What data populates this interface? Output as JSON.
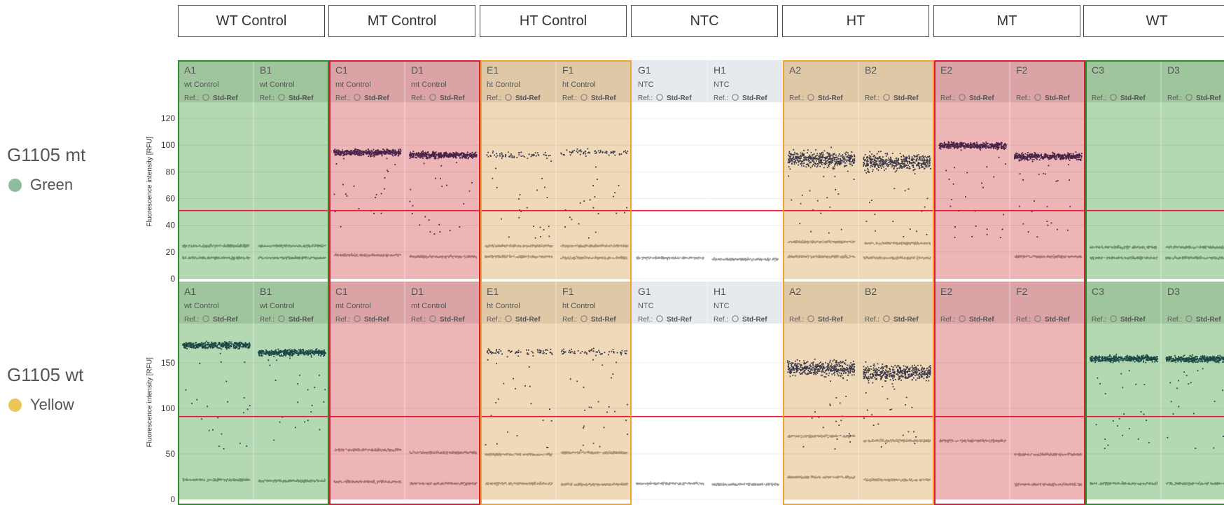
{
  "groups": [
    {
      "label": "WT Control"
    },
    {
      "label": "MT Control"
    },
    {
      "label": "HT Control"
    },
    {
      "label": "NTC"
    },
    {
      "label": "HT"
    },
    {
      "label": "MT"
    },
    {
      "label": "WT"
    }
  ],
  "assays": [
    {
      "name": "G1105 mt",
      "dye": "Green",
      "dye_color": "#8fbc9f"
    },
    {
      "name": "G1105 wt",
      "dye": "Yellow",
      "dye_color": "#eac756"
    }
  ],
  "colors": {
    "wt": "#b4d8b2",
    "mt": "#eeb5b7",
    "ht": "#efd9b8",
    "ntc": "#ffffff",
    "threshold": "#e0203a",
    "wt_border": "#2a8c2a",
    "mt_border": "#d81b3a",
    "ht_border": "#f0a232"
  },
  "chart_data": [
    {
      "type": "scatter",
      "title": "",
      "ylabel": "Fluorescence intensity [RFU]",
      "ylim": [
        0,
        130
      ],
      "yticks": [
        0,
        20,
        40,
        60,
        80,
        100,
        120
      ],
      "threshold": 51,
      "wells": [
        {
          "well": "A1",
          "sample": "wt Control",
          "ref": "Ref.:",
          "std": "Std-Ref",
          "type": "wt",
          "neg": [
            25,
            16
          ],
          "pos": null
        },
        {
          "well": "B1",
          "sample": "wt Control",
          "ref": "Ref.:",
          "std": "Std-Ref",
          "type": "wt",
          "neg": [
            25,
            16
          ],
          "pos": null
        },
        {
          "well": "C1",
          "sample": "mt Control",
          "ref": "Ref.:",
          "std": "Std-Ref",
          "type": "mt",
          "neg": [
            18
          ],
          "pos": 95
        },
        {
          "well": "D1",
          "sample": "mt Control",
          "ref": "Ref.:",
          "std": "Std-Ref",
          "type": "mt",
          "neg": [
            17
          ],
          "pos": 93
        },
        {
          "well": "E1",
          "sample": "ht Control",
          "ref": "Ref.:",
          "std": "Std-Ref",
          "type": "ht",
          "neg": [
            25,
            17
          ],
          "pos": 93
        },
        {
          "well": "F1",
          "sample": "ht Control",
          "ref": "Ref.:",
          "std": "Std-Ref",
          "type": "ht",
          "neg": [
            25,
            16
          ],
          "pos": 95
        },
        {
          "well": "G1",
          "sample": "NTC",
          "ref": "Ref.:",
          "std": "Std-Ref",
          "type": "ntc",
          "neg": [
            16
          ],
          "pos": null
        },
        {
          "well": "H1",
          "sample": "NTC",
          "ref": "Ref.:",
          "std": "Std-Ref",
          "type": "ntc",
          "neg": [
            15
          ],
          "pos": null
        },
        {
          "well": "A2",
          "sample": "",
          "ref": "Ref.:",
          "std": "Std-Ref",
          "type": "ht",
          "neg": [
            28,
            17
          ],
          "pos": 90
        },
        {
          "well": "B2",
          "sample": "",
          "ref": "Ref.:",
          "std": "Std-Ref",
          "type": "ht",
          "neg": [
            27,
            16
          ],
          "pos": 88
        },
        {
          "well": "E2",
          "sample": "",
          "ref": "Ref.:",
          "std": "Std-Ref",
          "type": "mt",
          "neg": [],
          "pos": 100
        },
        {
          "well": "F2",
          "sample": "",
          "ref": "Ref.:",
          "std": "Std-Ref",
          "type": "mt",
          "neg": [
            17
          ],
          "pos": 92
        },
        {
          "well": "C3",
          "sample": "",
          "ref": "Ref.:",
          "std": "Std-Ref",
          "type": "wt",
          "neg": [
            24,
            16
          ],
          "pos": null
        },
        {
          "well": "D3",
          "sample": "",
          "ref": "Ref.:",
          "std": "Std-Ref",
          "type": "wt",
          "neg": [
            24,
            16
          ],
          "pos": null
        }
      ]
    },
    {
      "type": "scatter",
      "title": "",
      "ylabel": "Fluorescence intensity [RFU]",
      "ylim": [
        0,
        190
      ],
      "yticks": [
        0,
        50,
        100,
        150
      ],
      "threshold": 91,
      "wells": [
        {
          "well": "A1",
          "sample": "wt Control",
          "ref": "Ref.:",
          "std": "Std-Ref",
          "type": "wt",
          "neg": [
            22
          ],
          "pos": 170
        },
        {
          "well": "B1",
          "sample": "wt Control",
          "ref": "Ref.:",
          "std": "Std-Ref",
          "type": "wt",
          "neg": [
            21
          ],
          "pos": 162
        },
        {
          "well": "C1",
          "sample": "mt Control",
          "ref": "Ref.:",
          "std": "Std-Ref",
          "type": "mt",
          "neg": [
            55,
            20
          ],
          "pos": null
        },
        {
          "well": "D1",
          "sample": "mt Control",
          "ref": "Ref.:",
          "std": "Std-Ref",
          "type": "mt",
          "neg": [
            52,
            18
          ],
          "pos": null
        },
        {
          "well": "E1",
          "sample": "ht Control",
          "ref": "Ref.:",
          "std": "Std-Ref",
          "type": "ht",
          "neg": [
            50,
            18
          ],
          "pos": 163
        },
        {
          "well": "F1",
          "sample": "ht Control",
          "ref": "Ref.:",
          "std": "Std-Ref",
          "type": "ht",
          "neg": [
            52,
            17
          ],
          "pos": 163
        },
        {
          "well": "G1",
          "sample": "NTC",
          "ref": "Ref.:",
          "std": "Std-Ref",
          "type": "ntc",
          "neg": [
            18
          ],
          "pos": null
        },
        {
          "well": "H1",
          "sample": "NTC",
          "ref": "Ref.:",
          "std": "Std-Ref",
          "type": "ntc",
          "neg": [
            17
          ],
          "pos": null
        },
        {
          "well": "A2",
          "sample": "",
          "ref": "Ref.:",
          "std": "Std-Ref",
          "type": "ht",
          "neg": [
            70,
            25
          ],
          "pos": 145
        },
        {
          "well": "B2",
          "sample": "",
          "ref": "Ref.:",
          "std": "Std-Ref",
          "type": "ht",
          "neg": [
            65,
            22
          ],
          "pos": 140
        },
        {
          "well": "E2",
          "sample": "",
          "ref": "Ref.:",
          "std": "Std-Ref",
          "type": "mt",
          "neg": [
            65
          ],
          "pos": null
        },
        {
          "well": "F2",
          "sample": "",
          "ref": "Ref.:",
          "std": "Std-Ref",
          "type": "mt",
          "neg": [
            50,
            17
          ],
          "pos": null
        },
        {
          "well": "C3",
          "sample": "",
          "ref": "Ref.:",
          "std": "Std-Ref",
          "type": "wt",
          "neg": [
            18
          ],
          "pos": 155
        },
        {
          "well": "D3",
          "sample": "",
          "ref": "Ref.:",
          "std": "Std-Ref",
          "type": "wt",
          "neg": [
            18
          ],
          "pos": 155
        }
      ]
    }
  ]
}
